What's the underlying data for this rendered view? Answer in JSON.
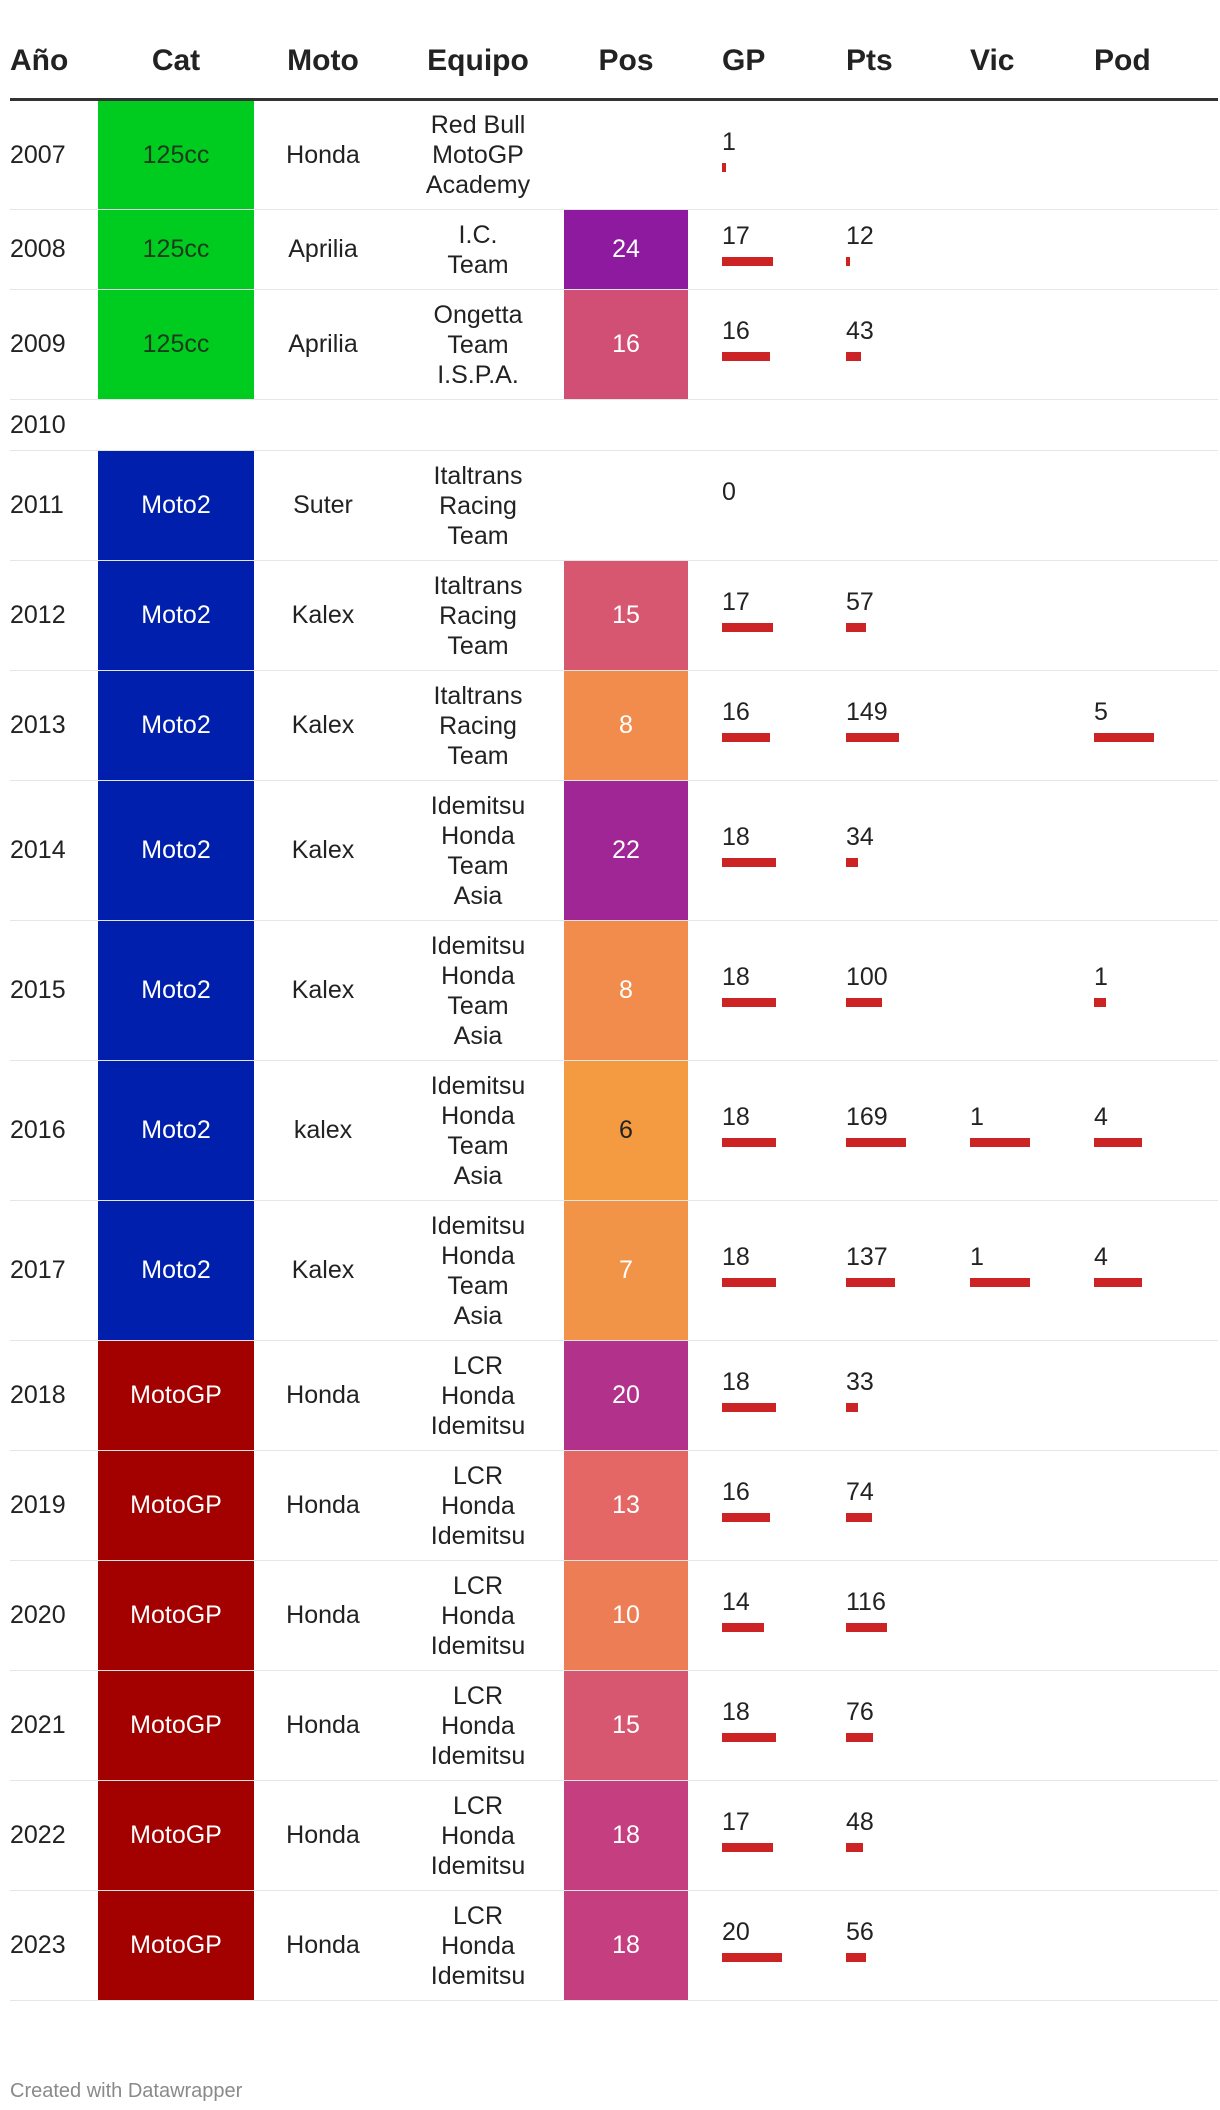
{
  "chart_data": {
    "type": "table",
    "columns": [
      "Año",
      "Cat",
      "Moto",
      "Equipo",
      "Pos",
      "GP",
      "Pts",
      "Vic",
      "Pod"
    ],
    "category_colors": {
      "125cc": "#00cc1f",
      "Moto2": "#001fac",
      "MotoGP": "#a30000"
    },
    "bar_color": "#cc2424",
    "bar_max": {
      "gp": 20,
      "pts": 169,
      "vic": 1,
      "pod": 5
    },
    "rows": [
      {
        "year": "2007",
        "cat": "125cc",
        "moto": "Honda",
        "team": [
          "Red Bull",
          "MotoGP",
          "Academy"
        ],
        "pos": null,
        "gp": 1,
        "pts": null,
        "vic": null,
        "pod": null
      },
      {
        "year": "2008",
        "cat": "125cc",
        "moto": "Aprilia",
        "team": [
          "I.C.",
          "Team"
        ],
        "pos": 24,
        "gp": 17,
        "pts": 12,
        "vic": null,
        "pod": null
      },
      {
        "year": "2009",
        "cat": "125cc",
        "moto": "Aprilia",
        "team": [
          "Ongetta",
          "Team",
          "I.S.P.A."
        ],
        "pos": 16,
        "gp": 16,
        "pts": 43,
        "vic": null,
        "pod": null
      },
      {
        "year": "2010",
        "cat": null,
        "moto": null,
        "team": [],
        "pos": null,
        "gp": null,
        "pts": null,
        "vic": null,
        "pod": null
      },
      {
        "year": "2011",
        "cat": "Moto2",
        "moto": "Suter",
        "team": [
          "Italtrans",
          "Racing",
          "Team"
        ],
        "pos": null,
        "gp": 0,
        "pts": null,
        "vic": null,
        "pod": null
      },
      {
        "year": "2012",
        "cat": "Moto2",
        "moto": "Kalex",
        "team": [
          "Italtrans",
          "Racing",
          "Team"
        ],
        "pos": 15,
        "gp": 17,
        "pts": 57,
        "vic": null,
        "pod": null
      },
      {
        "year": "2013",
        "cat": "Moto2",
        "moto": "Kalex",
        "team": [
          "Italtrans",
          "Racing",
          "Team"
        ],
        "pos": 8,
        "gp": 16,
        "pts": 149,
        "vic": null,
        "pod": 5
      },
      {
        "year": "2014",
        "cat": "Moto2",
        "moto": "Kalex",
        "team": [
          "Idemitsu",
          "Honda",
          "Team",
          "Asia"
        ],
        "pos": 22,
        "gp": 18,
        "pts": 34,
        "vic": null,
        "pod": null
      },
      {
        "year": "2015",
        "cat": "Moto2",
        "moto": "Kalex",
        "team": [
          "Idemitsu",
          "Honda",
          "Team",
          "Asia"
        ],
        "pos": 8,
        "gp": 18,
        "pts": 100,
        "vic": null,
        "pod": 1
      },
      {
        "year": "2016",
        "cat": "Moto2",
        "moto": "kalex",
        "team": [
          "Idemitsu",
          "Honda",
          "Team",
          "Asia"
        ],
        "pos": 6,
        "gp": 18,
        "pts": 169,
        "vic": 1,
        "pod": 4
      },
      {
        "year": "2017",
        "cat": "Moto2",
        "moto": "Kalex",
        "team": [
          "Idemitsu",
          "Honda",
          "Team",
          "Asia"
        ],
        "pos": 7,
        "gp": 18,
        "pts": 137,
        "vic": 1,
        "pod": 4
      },
      {
        "year": "2018",
        "cat": "MotoGP",
        "moto": "Honda",
        "team": [
          "LCR",
          "Honda",
          "Idemitsu"
        ],
        "pos": 20,
        "gp": 18,
        "pts": 33,
        "vic": null,
        "pod": null
      },
      {
        "year": "2019",
        "cat": "MotoGP",
        "moto": "Honda",
        "team": [
          "LCR",
          "Honda",
          "Idemitsu"
        ],
        "pos": 13,
        "gp": 16,
        "pts": 74,
        "vic": null,
        "pod": null
      },
      {
        "year": "2020",
        "cat": "MotoGP",
        "moto": "Honda",
        "team": [
          "LCR",
          "Honda",
          "Idemitsu"
        ],
        "pos": 10,
        "gp": 14,
        "pts": 116,
        "vic": null,
        "pod": null
      },
      {
        "year": "2021",
        "cat": "MotoGP",
        "moto": "Honda",
        "team": [
          "LCR",
          "Honda",
          "Idemitsu"
        ],
        "pos": 15,
        "gp": 18,
        "pts": 76,
        "vic": null,
        "pod": null
      },
      {
        "year": "2022",
        "cat": "MotoGP",
        "moto": "Honda",
        "team": [
          "LCR",
          "Honda",
          "Idemitsu"
        ],
        "pos": 18,
        "gp": 17,
        "pts": 48,
        "vic": null,
        "pod": null
      },
      {
        "year": "2023",
        "cat": "MotoGP",
        "moto": "Honda",
        "team": [
          "LCR",
          "Honda",
          "Idemitsu"
        ],
        "pos": 18,
        "gp": 20,
        "pts": 56,
        "vic": null,
        "pod": null
      }
    ]
  },
  "footer": "Created with Datawrapper"
}
